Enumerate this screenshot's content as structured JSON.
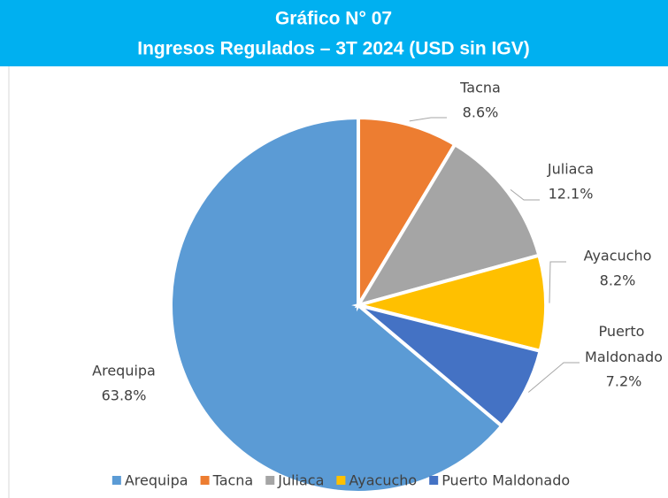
{
  "chart_data": {
    "type": "pie",
    "title": "Gráfico N° 07",
    "subtitle": "Ingresos Regulados – 3T 2024 (USD sin IGV)",
    "categories": [
      "Arequipa",
      "Tacna",
      "Juliaca",
      "Ayacucho",
      "Puerto Maldonado"
    ],
    "values": [
      63.8,
      8.6,
      12.1,
      8.2,
      7.2
    ],
    "value_labels": [
      "63.8%",
      "8.6%",
      "12.1%",
      "8.2%",
      "7.2%"
    ],
    "colors": [
      "#5B9BD5",
      "#ED7D31",
      "#A5A5A5",
      "#FFC000",
      "#4472C4"
    ],
    "legend": "bottom"
  }
}
